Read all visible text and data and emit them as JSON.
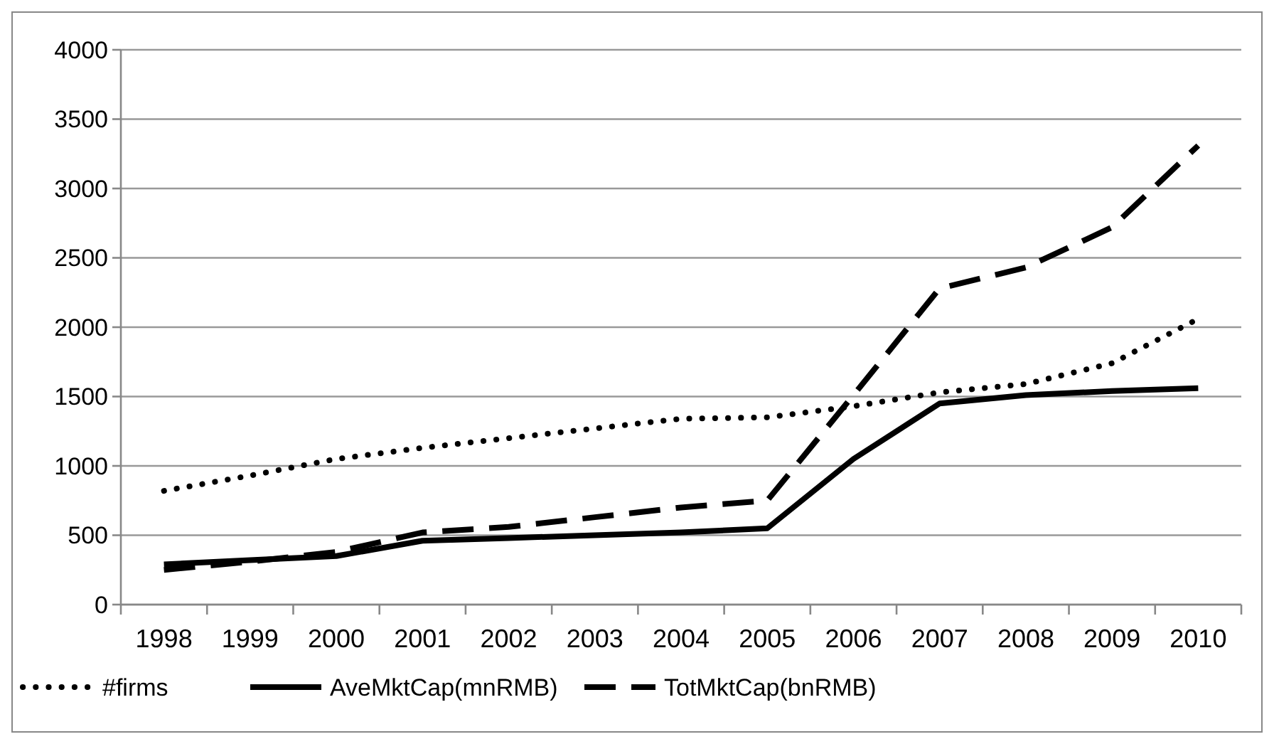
{
  "chart_data": {
    "type": "line",
    "categories": [
      "1998",
      "1999",
      "2000",
      "2001",
      "2002",
      "2003",
      "2004",
      "2005",
      "2006",
      "2007",
      "2008",
      "2009",
      "2010"
    ],
    "ylim": [
      0,
      4000
    ],
    "yticks": [
      0,
      500,
      1000,
      1500,
      2000,
      2500,
      3000,
      3500,
      4000
    ],
    "grid": "y",
    "legend": "bottom",
    "marker": "none",
    "series": [
      {
        "name": "#firms",
        "color": "#000000",
        "line_style": "dotted",
        "values": [
          820,
          930,
          1050,
          1130,
          1200,
          1270,
          1340,
          1350,
          1430,
          1530,
          1590,
          1740,
          2060
        ]
      },
      {
        "name": "AveMktCap(mnRMB)",
        "color": "#000000",
        "line_style": "solid",
        "values": [
          290,
          320,
          350,
          460,
          480,
          500,
          520,
          550,
          1050,
          1450,
          1510,
          1540,
          1560
        ]
      },
      {
        "name": "TotMktCap(bnRMB)",
        "color": "#000000",
        "line_style": "dashed",
        "values": [
          250,
          310,
          380,
          520,
          560,
          630,
          700,
          750,
          1510,
          2280,
          2430,
          2720,
          3310
        ]
      }
    ]
  }
}
